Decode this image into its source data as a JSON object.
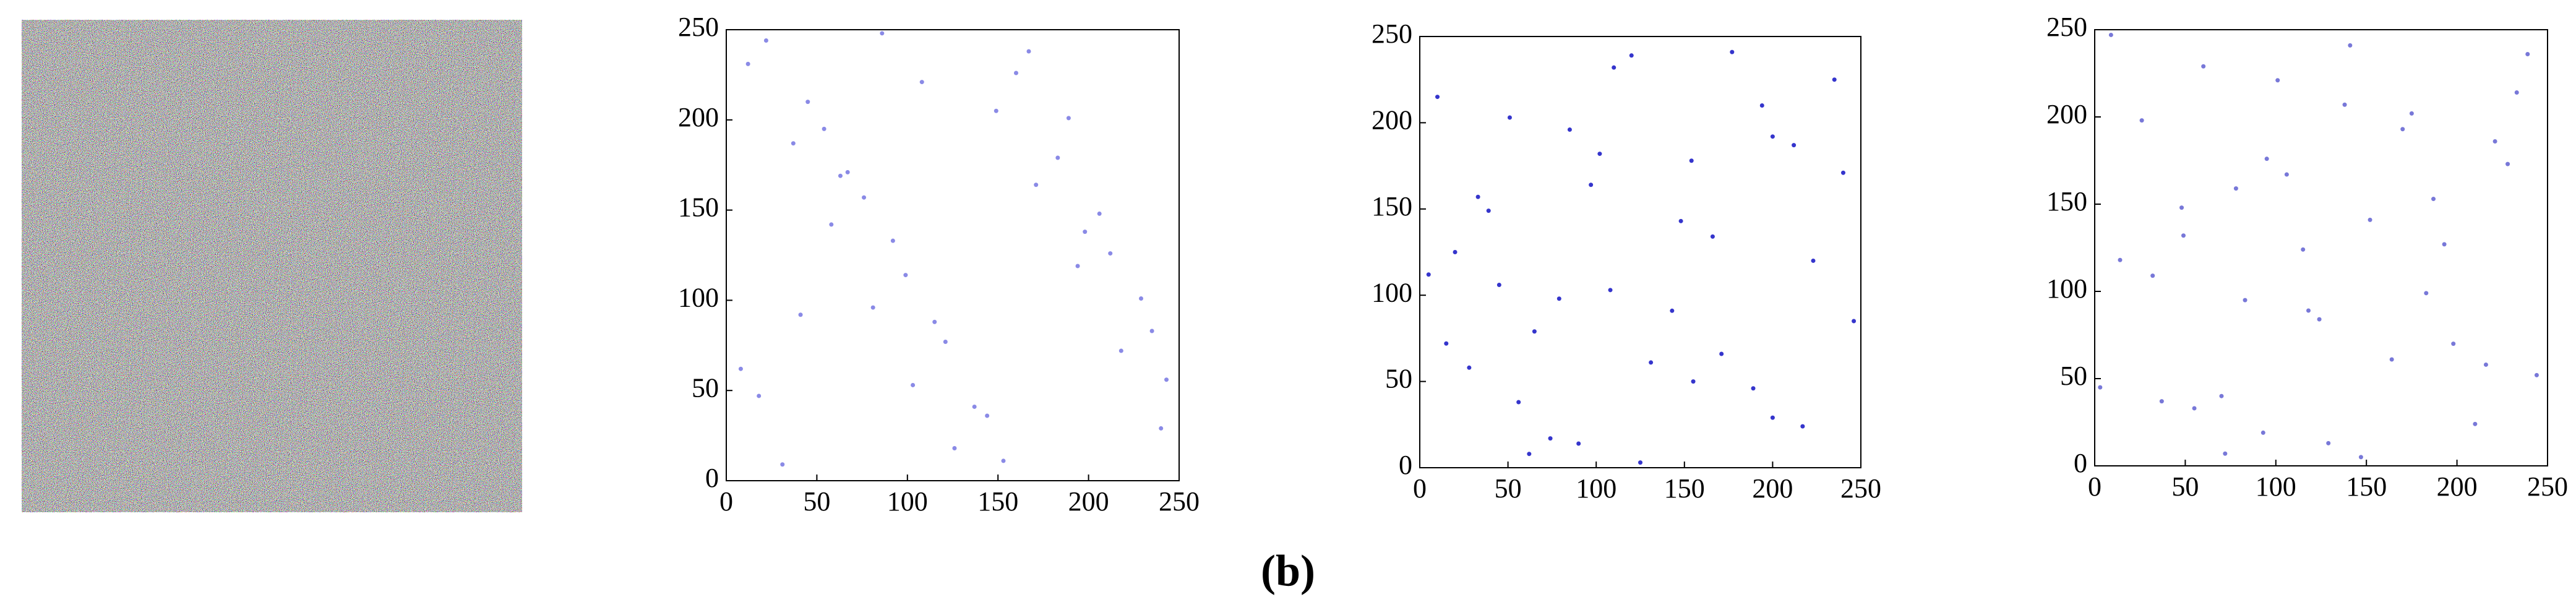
{
  "chart_data": [
    {
      "type": "scatter",
      "color": "#8a8ae6",
      "x": [
        12,
        37,
        58,
        81,
        103,
        126,
        149,
        171,
        194,
        218,
        240,
        22,
        45,
        67,
        92,
        115,
        137,
        160,
        183,
        206,
        229,
        8,
        31,
        54,
        76,
        99,
        121,
        144,
        167,
        189,
        212,
        235,
        18,
        63,
        108,
        153,
        198,
        243,
        41,
        86
      ],
      "values": [
        231,
        187,
        142,
        96,
        53,
        18,
        205,
        164,
        119,
        72,
        29,
        244,
        210,
        171,
        133,
        88,
        41,
        226,
        179,
        148,
        101,
        62,
        9,
        195,
        157,
        114,
        77,
        36,
        238,
        201,
        126,
        83,
        47,
        169,
        221,
        11,
        138,
        56,
        92,
        248
      ],
      "xlim": [
        0,
        250
      ],
      "ylim": [
        0,
        250
      ],
      "xticks": [
        0,
        50,
        100,
        150,
        200,
        250
      ],
      "yticks": [
        0,
        50,
        100,
        150,
        200,
        250
      ]
    },
    {
      "type": "scatter",
      "color": "#3535cc",
      "x": [
        5,
        28,
        51,
        74,
        97,
        120,
        143,
        166,
        189,
        212,
        235,
        15,
        39,
        62,
        85,
        108,
        131,
        154,
        177,
        200,
        223,
        246,
        10,
        33,
        56,
        79,
        102,
        125,
        148,
        171,
        194,
        217,
        240,
        20,
        65,
        110,
        155,
        200,
        45,
        90
      ],
      "values": [
        112,
        58,
        203,
        17,
        164,
        239,
        91,
        134,
        46,
        187,
        225,
        72,
        149,
        8,
        196,
        103,
        61,
        178,
        241,
        29,
        120,
        85,
        215,
        157,
        38,
        98,
        182,
        3,
        143,
        66,
        210,
        24,
        171,
        125,
        79,
        232,
        50,
        192,
        106,
        14
      ],
      "xlim": [
        0,
        250
      ],
      "ylim": [
        0,
        250
      ],
      "xticks": [
        0,
        50,
        100,
        150,
        200,
        250
      ],
      "yticks": [
        0,
        50,
        100,
        150,
        200,
        250
      ]
    },
    {
      "type": "scatter",
      "color": "#7878d8",
      "x": [
        3,
        26,
        49,
        72,
        95,
        118,
        141,
        164,
        187,
        210,
        233,
        14,
        37,
        60,
        83,
        106,
        129,
        152,
        175,
        198,
        221,
        244,
        9,
        32,
        55,
        78,
        101,
        124,
        147,
        170,
        193,
        216,
        239,
        48,
        93,
        138,
        183,
        228,
        70,
        115
      ],
      "values": [
        45,
        198,
        132,
        7,
        176,
        89,
        241,
        61,
        153,
        24,
        214,
        118,
        37,
        229,
        95,
        167,
        13,
        141,
        202,
        70,
        186,
        52,
        247,
        109,
        33,
        159,
        221,
        84,
        5,
        193,
        127,
        58,
        236,
        148,
        19,
        207,
        99,
        173,
        40,
        124
      ],
      "xlim": [
        0,
        250
      ],
      "ylim": [
        0,
        250
      ],
      "xticks": [
        0,
        50,
        100,
        150,
        200,
        250
      ],
      "yticks": [
        0,
        50,
        100,
        150,
        200,
        250
      ]
    }
  ],
  "caption": "(b)"
}
